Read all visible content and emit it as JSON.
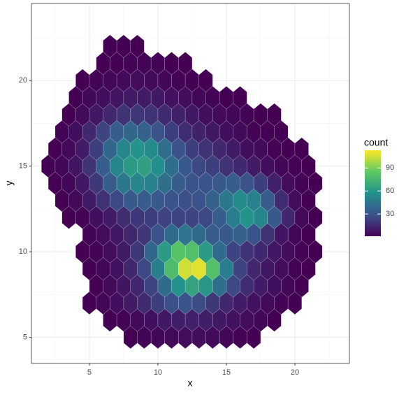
{
  "chart_data": {
    "type": "hexbin",
    "x_label": "x",
    "y_label": "y",
    "xlim": [
      0.77,
      23.98
    ],
    "ylim": [
      3.47,
      24.5
    ],
    "xticks": [
      5,
      10,
      15,
      20
    ],
    "yticks": [
      5,
      10,
      15,
      20
    ],
    "minor_xticks": [
      2.5,
      7.5,
      12.5,
      17.5,
      22.5
    ],
    "minor_yticks": [
      7.5,
      12.5,
      17.5,
      22.5
    ],
    "grid": true,
    "legend_title": "count",
    "colorlim": [
      1,
      113
    ],
    "colorticks": [
      30,
      60,
      90
    ],
    "colormap": "viridis",
    "rows": [
      {
        "y": 5,
        "x0": 8,
        "counts": [
          1,
          2,
          3,
          4,
          5,
          5,
          4,
          3,
          2,
          1
        ]
      },
      {
        "y": 6,
        "x0": 6.5,
        "counts": [
          1,
          2,
          4,
          6,
          9,
          11,
          12,
          11,
          9,
          7,
          5,
          3,
          1
        ]
      },
      {
        "y": 7,
        "x0": 5,
        "counts": [
          1,
          3,
          6,
          10,
          15,
          22,
          28,
          30,
          27,
          20,
          14,
          10,
          7,
          4,
          2,
          1
        ]
      },
      {
        "y": 8,
        "x0": 5.5,
        "counts": [
          1,
          4,
          8,
          14,
          24,
          40,
          58,
          66,
          60,
          42,
          26,
          16,
          10,
          6,
          3,
          1
        ]
      },
      {
        "y": 9,
        "x0": 5,
        "counts": [
          1,
          3,
          7,
          14,
          26,
          48,
          78,
          105,
          108,
          80,
          48,
          24,
          14,
          9,
          5,
          2,
          1
        ]
      },
      {
        "y": 10,
        "x0": 4.5,
        "counts": [
          1,
          2,
          5,
          10,
          20,
          38,
          62,
          82,
          80,
          62,
          40,
          24,
          18,
          14,
          9,
          5,
          2,
          1
        ]
      },
      {
        "y": 11,
        "x0": 5,
        "counts": [
          2,
          5,
          9,
          14,
          20,
          30,
          40,
          44,
          40,
          34,
          32,
          36,
          30,
          18,
          8,
          3,
          1
        ]
      },
      {
        "y": 12,
        "x0": 3.5,
        "counts": [
          1,
          2,
          6,
          10,
          16,
          20,
          22,
          24,
          24,
          24,
          26,
          34,
          48,
          58,
          52,
          32,
          14,
          4,
          1
        ]
      },
      {
        "y": 13,
        "x0": 3,
        "counts": [
          1,
          4,
          10,
          18,
          26,
          32,
          34,
          32,
          30,
          28,
          30,
          36,
          46,
          54,
          50,
          34,
          16,
          5,
          1
        ]
      },
      {
        "y": 14,
        "x0": 2.5,
        "counts": [
          1,
          3,
          9,
          20,
          34,
          46,
          52,
          50,
          42,
          34,
          30,
          30,
          32,
          34,
          30,
          22,
          12,
          5,
          2,
          1
        ]
      },
      {
        "y": 15,
        "x0": 2,
        "counts": [
          1,
          3,
          8,
          18,
          34,
          52,
          62,
          64,
          56,
          42,
          32,
          26,
          22,
          18,
          14,
          10,
          6,
          3,
          2,
          1
        ]
      },
      {
        "y": 16,
        "x0": 2.5,
        "counts": [
          1,
          4,
          10,
          22,
          38,
          52,
          58,
          54,
          42,
          30,
          22,
          18,
          14,
          10,
          6,
          4,
          2,
          1,
          1
        ]
      },
      {
        "y": 17,
        "x0": 3,
        "counts": [
          2,
          6,
          14,
          24,
          34,
          38,
          36,
          30,
          22,
          16,
          12,
          9,
          6,
          4,
          2,
          1,
          1
        ]
      },
      {
        "y": 18,
        "x0": 3.5,
        "counts": [
          1,
          4,
          9,
          14,
          18,
          20,
          18,
          15,
          12,
          9,
          6,
          4,
          3,
          2,
          1,
          1
        ]
      },
      {
        "y": 19,
        "x0": 4,
        "counts": [
          1,
          3,
          6,
          8,
          10,
          10,
          9,
          7,
          5,
          3,
          2,
          1,
          1
        ]
      },
      {
        "y": 20,
        "x0": 4.5,
        "counts": [
          1,
          2,
          3,
          4,
          5,
          4,
          3,
          2,
          1,
          1
        ]
      },
      {
        "y": 21,
        "x0": 6,
        "counts": [
          1,
          1,
          2,
          2,
          2,
          1,
          1
        ]
      },
      {
        "y": 22,
        "x0": 6.5,
        "counts": [
          1,
          1,
          1
        ]
      }
    ]
  }
}
